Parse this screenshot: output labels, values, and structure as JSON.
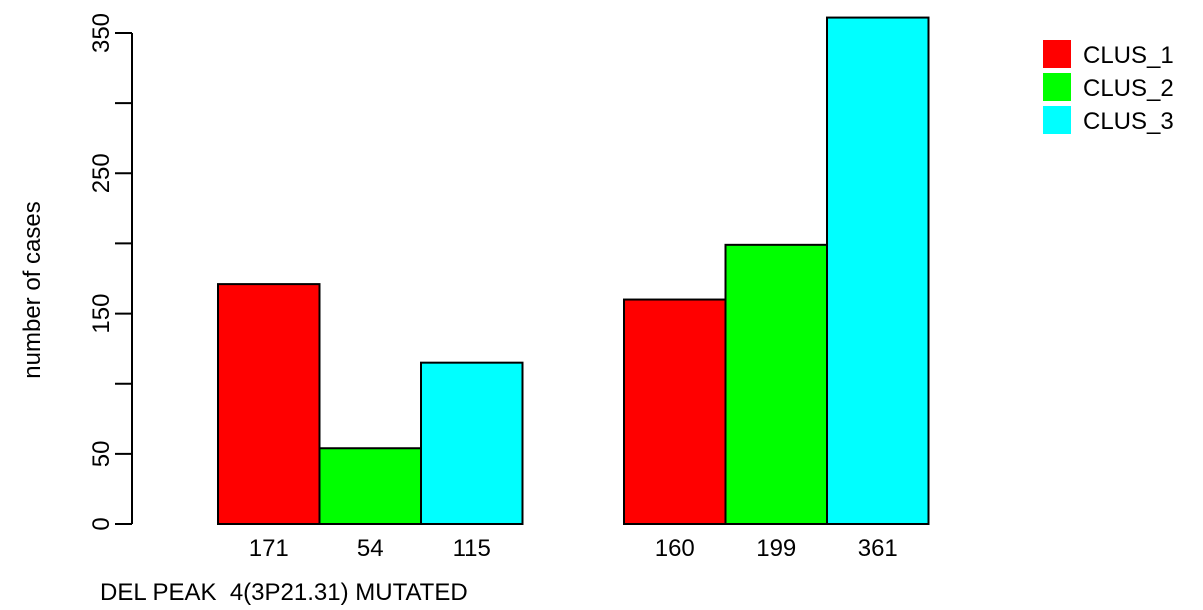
{
  "chart_data": {
    "type": "bar",
    "title": "",
    "xlabel": "DEL PEAK  4(3P21.31) MUTATED",
    "ylabel": "number of cases",
    "ylim": [
      0,
      360
    ],
    "yticks": [
      0,
      50,
      150,
      250,
      350
    ],
    "grid": false,
    "legend_position": "top-right",
    "groups": [
      {
        "bars": [
          {
            "series": "CLUS_1",
            "value": 171,
            "label": "171"
          },
          {
            "series": "CLUS_2",
            "value": 54,
            "label": "54"
          },
          {
            "series": "CLUS_3",
            "value": 115,
            "label": "115"
          }
        ]
      },
      {
        "bars": [
          {
            "series": "CLUS_1",
            "value": 160,
            "label": "160"
          },
          {
            "series": "CLUS_2",
            "value": 199,
            "label": "199"
          },
          {
            "series": "CLUS_3",
            "value": 361,
            "label": "361"
          }
        ]
      }
    ],
    "series": [
      {
        "name": "CLUS_1",
        "color": "#ff0000"
      },
      {
        "name": "CLUS_2",
        "color": "#00ff00"
      },
      {
        "name": "CLUS_3",
        "color": "#00ffff"
      }
    ]
  }
}
